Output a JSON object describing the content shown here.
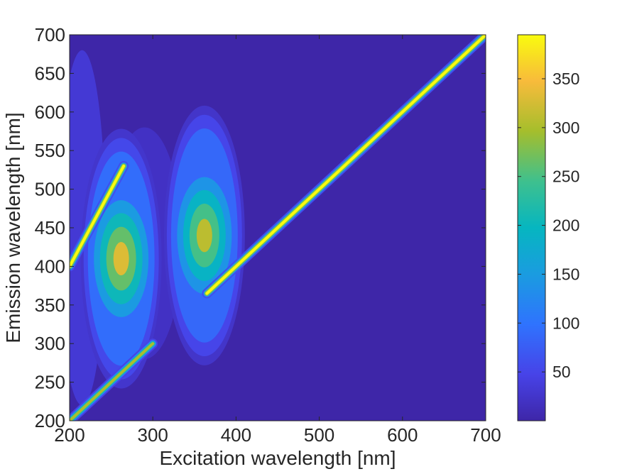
{
  "chart_data": {
    "type": "heatmap",
    "title": "",
    "xlabel": "Excitation wavelength [nm]",
    "ylabel": "Emission wavelength [nm]",
    "xlim": [
      200,
      700
    ],
    "ylim": [
      200,
      700
    ],
    "x_ticks": [
      200,
      300,
      400,
      500,
      600,
      700
    ],
    "y_ticks": [
      200,
      250,
      300,
      350,
      400,
      450,
      500,
      550,
      600,
      650,
      700
    ],
    "colorbar": {
      "min": 0,
      "max": 395,
      "ticks": [
        50,
        100,
        150,
        200,
        250,
        300,
        350
      ],
      "colormap": "parula"
    },
    "features": [
      {
        "kind": "scatter-line",
        "ex_start": 365,
        "ex_end": 700,
        "peak_value": 395,
        "description": "first-order Rayleigh scatter (em = ex)"
      },
      {
        "kind": "scatter-line",
        "ex_start": 200,
        "ex_end": 300,
        "peak_value": 300,
        "description": "first-order scatter (em = ex)"
      },
      {
        "kind": "scatter-line",
        "ex_start": 200,
        "ex_end": 265,
        "peak_value": 395,
        "description": "second-order scatter (em = 2 ex)"
      },
      {
        "kind": "peak",
        "ex": 262,
        "em": 410,
        "peak_value": 330
      },
      {
        "kind": "peak",
        "ex": 362,
        "em": 440,
        "peak_value": 310
      }
    ],
    "grid": false,
    "legend": "colorbar-right"
  }
}
